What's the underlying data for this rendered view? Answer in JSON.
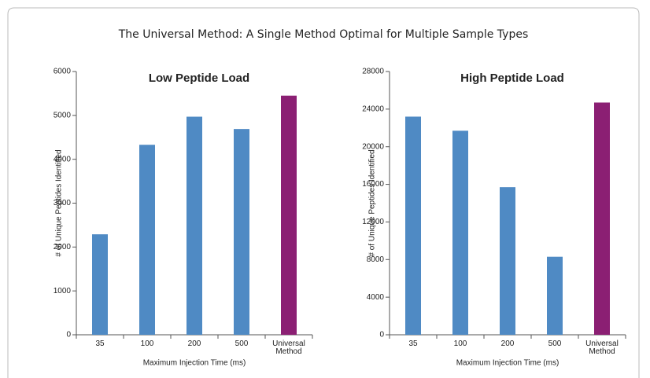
{
  "title": "The Universal Method: A Single Method Optimal for Multiple Sample Types",
  "chart_data": [
    {
      "type": "bar",
      "title": "Low Peptide Load",
      "x_label": "Maximum Injection Time (ms)",
      "y_label": "# of Unique Peptides Identified",
      "categories": [
        "35",
        "100",
        "200",
        "500",
        "Universal Method"
      ],
      "values": [
        2290,
        4330,
        4970,
        4690,
        5450
      ],
      "colors": [
        "#4f8ac4",
        "#4f8ac4",
        "#4f8ac4",
        "#4f8ac4",
        "#8b1f73"
      ],
      "ylim": [
        0,
        6000
      ],
      "yticks": [
        0,
        1000,
        2000,
        3000,
        4000,
        5000,
        6000
      ]
    },
    {
      "type": "bar",
      "title": "High Peptide Load",
      "x_label": "Maximum Injection Time (ms)",
      "y_label": "# of Unique Peptides Identified",
      "categories": [
        "35",
        "100",
        "200",
        "500",
        "Universal Method"
      ],
      "values": [
        23200,
        21700,
        15700,
        8300,
        24700
      ],
      "colors": [
        "#4f8ac4",
        "#4f8ac4",
        "#4f8ac4",
        "#4f8ac4",
        "#8b1f73"
      ],
      "ylim": [
        0,
        28000
      ],
      "yticks": [
        0,
        4000,
        8000,
        12000,
        16000,
        20000,
        24000,
        28000
      ]
    }
  ]
}
